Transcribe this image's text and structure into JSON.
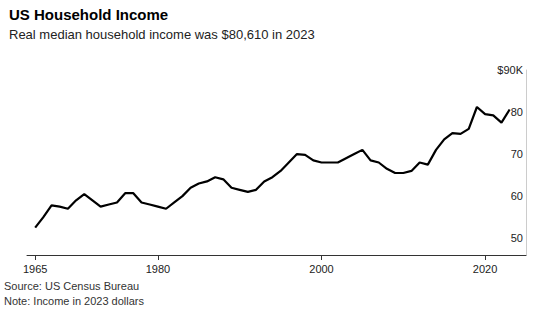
{
  "chart_data": {
    "type": "line",
    "title": "US Household Income",
    "subtitle": "Real median household income was $80,610 in 2023",
    "source": "Source: US Census Bureau",
    "note": "Note: Income in 2023 dollars",
    "color": "#000000",
    "grid": false,
    "x": [
      1965,
      1966,
      1967,
      1968,
      1969,
      1970,
      1971,
      1972,
      1973,
      1974,
      1975,
      1976,
      1977,
      1978,
      1979,
      1980,
      1981,
      1982,
      1983,
      1984,
      1985,
      1986,
      1987,
      1988,
      1989,
      1990,
      1991,
      1992,
      1993,
      1994,
      1995,
      1996,
      1997,
      1998,
      1999,
      2000,
      2001,
      2002,
      2003,
      2004,
      2005,
      2006,
      2007,
      2008,
      2009,
      2010,
      2011,
      2012,
      2013,
      2014,
      2015,
      2016,
      2017,
      2018,
      2019,
      2020,
      2021,
      2022,
      2023
    ],
    "values": [
      52.5,
      55,
      57.8,
      57.5,
      57,
      59,
      60.5,
      59,
      57.5,
      58,
      58.5,
      60.7,
      60.7,
      58.5,
      58,
      57.5,
      57,
      58.5,
      60,
      62,
      63,
      63.5,
      64.5,
      64,
      62,
      61.5,
      61,
      61.5,
      63.5,
      64.5,
      66,
      68,
      70,
      69.8,
      68.5,
      68,
      68,
      68,
      69,
      70,
      71,
      68.5,
      68,
      66.5,
      65.5,
      65.5,
      66,
      68,
      67.5,
      71,
      73.5,
      75,
      74.8,
      76,
      81.2,
      79.5,
      79.2,
      77.5,
      80.6
    ],
    "xlim": [
      1964,
      2025
    ],
    "xticks": [
      1965,
      1980,
      2000,
      2020
    ],
    "ylim": [
      46,
      90
    ],
    "yticks": [
      50,
      60,
      70,
      80,
      {
        "value": 90,
        "label": "$90K"
      }
    ]
  }
}
